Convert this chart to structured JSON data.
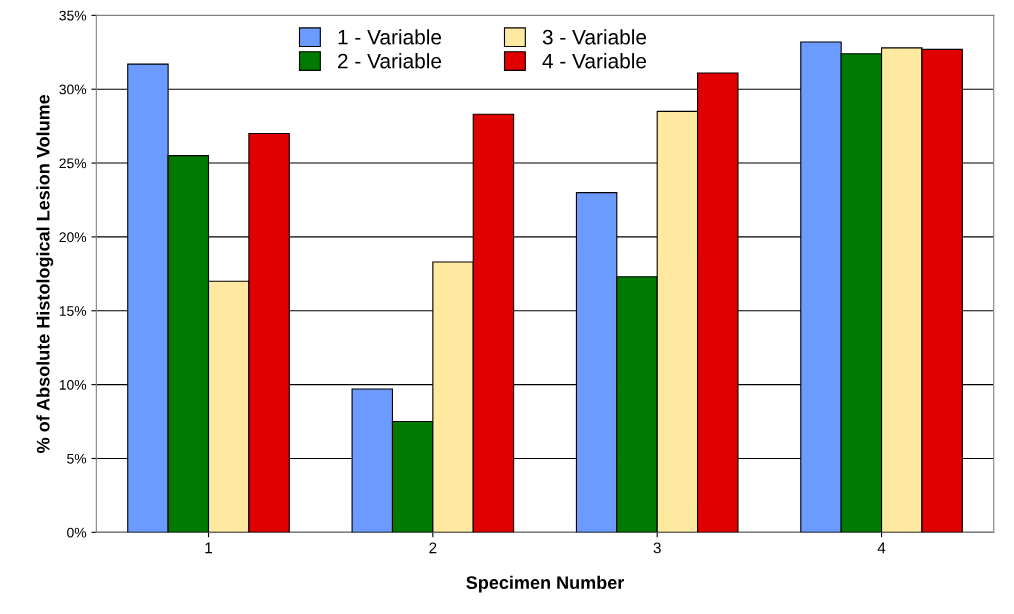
{
  "chart_data": {
    "type": "bar",
    "xlabel": "Specimen Number",
    "ylabel": "% of Absolute Histological Lesion Volume",
    "categories": [
      "1",
      "2",
      "3",
      "4"
    ],
    "series": [
      {
        "name": "1 - Variable",
        "color": "#6b9bff",
        "values": [
          31.7,
          9.7,
          23.0,
          33.2
        ]
      },
      {
        "name": "2 - Variable",
        "color": "#007a00",
        "values": [
          25.5,
          7.5,
          17.3,
          32.4
        ]
      },
      {
        "name": "3 - Variable",
        "color": "#ffe9a0",
        "values": [
          17.0,
          18.3,
          28.5,
          32.8
        ]
      },
      {
        "name": "4 - Variable",
        "color": "#e00000",
        "values": [
          27.0,
          28.3,
          31.1,
          32.7
        ]
      }
    ],
    "ylim": [
      0,
      35
    ],
    "yticks": [
      {
        "value": 0,
        "label": "0%"
      },
      {
        "value": 5,
        "label": "5%"
      },
      {
        "value": 10,
        "label": "10%"
      },
      {
        "value": 15,
        "label": "15%"
      },
      {
        "value": 20,
        "label": "20%"
      },
      {
        "value": 25,
        "label": "25%"
      },
      {
        "value": 30,
        "label": "30%"
      },
      {
        "value": 35,
        "label": "35%"
      }
    ],
    "grid": "y",
    "legend": "top"
  }
}
